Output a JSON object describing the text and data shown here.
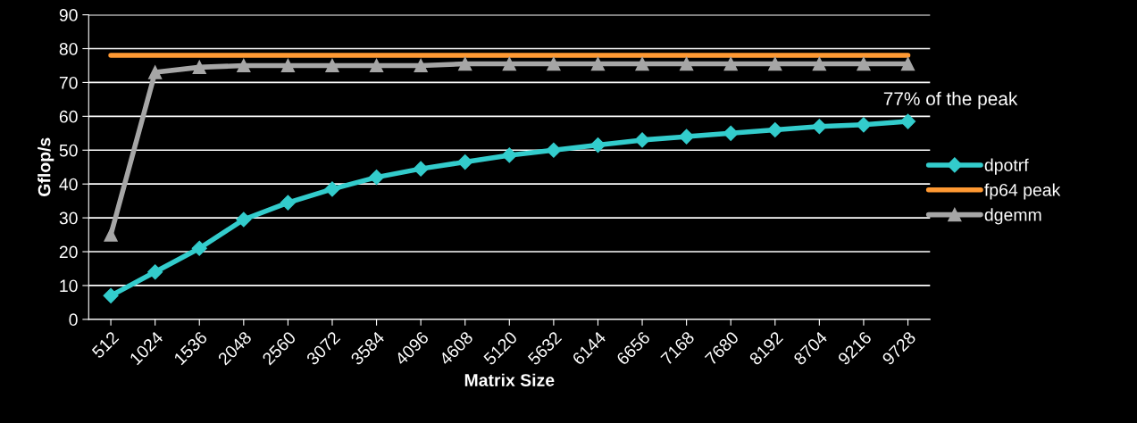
{
  "chart_data": {
    "type": "line",
    "xlabel": "Matrix Size",
    "ylabel": "Gflop/s",
    "categories": [
      "512",
      "1024",
      "1536",
      "2048",
      "2560",
      "3072",
      "3584",
      "4096",
      "4608",
      "5120",
      "5632",
      "6144",
      "6656",
      "7168",
      "7680",
      "8192",
      "8704",
      "9216",
      "9728"
    ],
    "series": [
      {
        "name": "dpotrf",
        "color": "#33cccc",
        "marker": "diamond",
        "values": [
          7,
          14,
          21,
          29.5,
          34.5,
          38.5,
          42,
          44.5,
          46.5,
          48.5,
          50,
          51.5,
          53,
          54,
          55,
          56,
          57,
          57.5,
          58.5
        ]
      },
      {
        "name": "fp64 peak",
        "color": "#ff9933",
        "marker": "none",
        "values": [
          78,
          78,
          78,
          78,
          78,
          78,
          78,
          78,
          78,
          78,
          78,
          78,
          78,
          78,
          78,
          78,
          78,
          78,
          78
        ]
      },
      {
        "name": "dgemm",
        "color": "#a6a6a6",
        "marker": "triangle",
        "values": [
          25,
          73,
          74.5,
          75,
          75,
          75,
          75,
          75,
          75.5,
          75.5,
          75.5,
          75.5,
          75.5,
          75.5,
          75.5,
          75.5,
          75.5,
          75.5,
          75.5
        ]
      }
    ],
    "ylim": [
      0,
      90
    ],
    "yticks": [
      0,
      10,
      20,
      30,
      40,
      50,
      60,
      70,
      80,
      90
    ],
    "grid": "y",
    "legend": "right",
    "annotations": [
      {
        "text": "77% of the peak",
        "x": "9728",
        "y": 58.5
      }
    ]
  }
}
